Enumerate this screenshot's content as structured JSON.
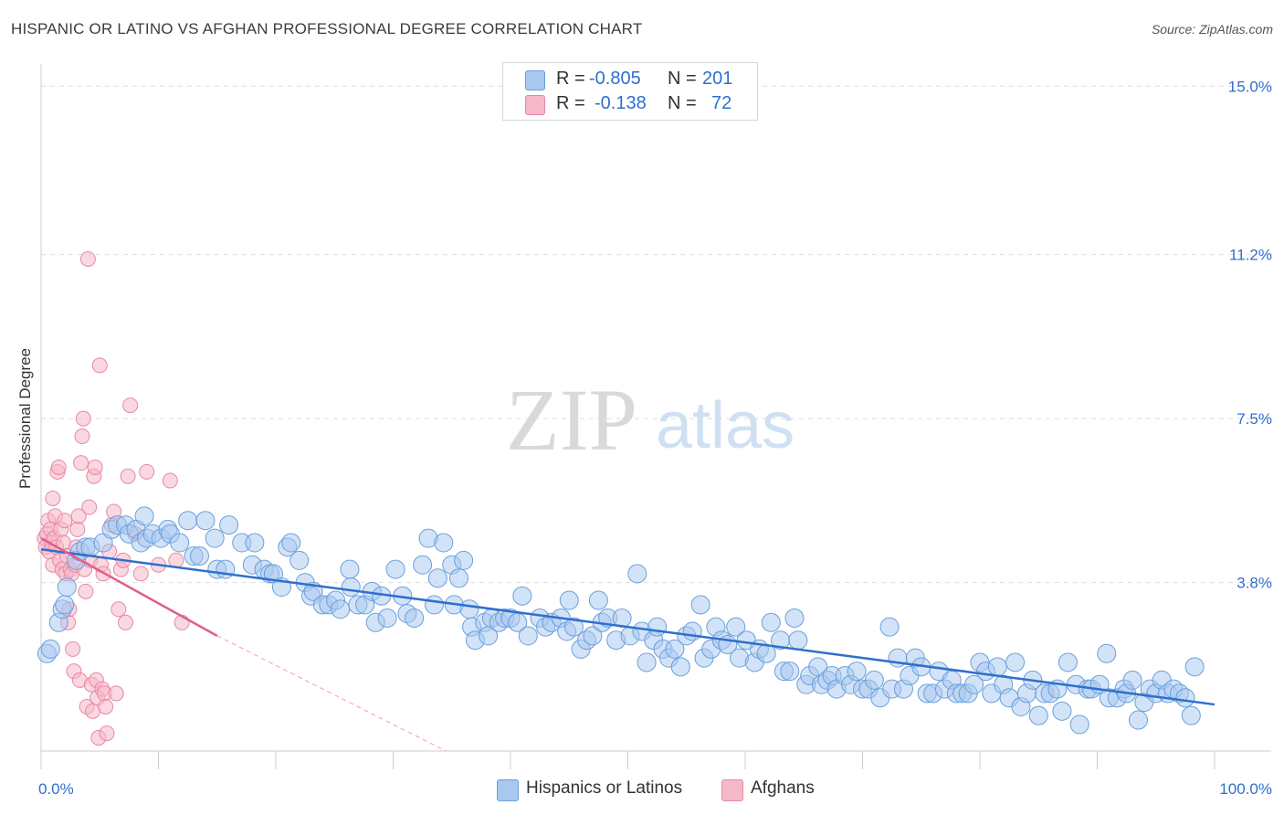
{
  "header": {
    "title": "HISPANIC OR LATINO VS AFGHAN PROFESSIONAL DEGREE CORRELATION CHART",
    "source": "Source: ZipAtlas.com"
  },
  "watermark": {
    "zip": "ZIP",
    "atlas": "atlas"
  },
  "legend_top": {
    "rows": [
      {
        "r_label": "R =",
        "r_value": "-0.805",
        "n_label": "N =",
        "n_value": "201",
        "color": "#a8c8f0"
      },
      {
        "r_label": "R =",
        "r_value": "-0.138",
        "n_label": "N =",
        "n_value": "72",
        "color": "#f5b8c8"
      }
    ]
  },
  "legend_bottom": [
    {
      "label": "Hispanics or Latinos",
      "color": "#a8c8f0"
    },
    {
      "label": "Afghans",
      "color": "#f5b8c8"
    }
  ],
  "colors": {
    "blue_fill": "#a8c8f0",
    "blue_stroke": "#6a9fdc",
    "blue_line": "#2f6fce",
    "pink_fill": "#f5b8c8",
    "pink_stroke": "#e888a4",
    "pink_line": "#e0608a",
    "grid": "#dddddd",
    "axis": "#cccccc",
    "tick_text": "#2f6fce"
  },
  "chart_data": {
    "type": "scatter",
    "title": "HISPANIC OR LATINO VS AFGHAN PROFESSIONAL DEGREE CORRELATION CHART",
    "xlabel": "",
    "ylabel": "Professional Degree",
    "xlim": [
      0,
      100
    ],
    "ylim": [
      0,
      15.5
    ],
    "x_tick_labels": [
      "0.0%",
      "100.0%"
    ],
    "y_ticks": [
      3.8,
      7.5,
      11.2,
      15.0
    ],
    "y_tick_labels": [
      "3.8%",
      "7.5%",
      "11.2%",
      "15.0%"
    ],
    "series": [
      {
        "name": "Hispanics or Latinos",
        "r": -0.805,
        "n": 201,
        "trend": {
          "x0": 0,
          "y0": 4.55,
          "x1": 100,
          "y1": 1.05,
          "dashed_to": null
        },
        "points": [
          [
            0.5,
            2.2
          ],
          [
            0.8,
            2.3
          ],
          [
            1.5,
            2.9
          ],
          [
            1.8,
            3.2
          ],
          [
            2.0,
            3.3
          ],
          [
            2.2,
            3.7
          ],
          [
            3.0,
            4.3
          ],
          [
            3.3,
            4.5
          ],
          [
            3.8,
            4.6
          ],
          [
            4.2,
            4.6
          ],
          [
            5.3,
            4.7
          ],
          [
            6.0,
            5.0
          ],
          [
            6.5,
            5.1
          ],
          [
            7.2,
            5.1
          ],
          [
            7.5,
            4.9
          ],
          [
            8.1,
            5.0
          ],
          [
            8.5,
            4.7
          ],
          [
            8.8,
            5.3
          ],
          [
            9.0,
            4.8
          ],
          [
            9.5,
            4.9
          ],
          [
            10.2,
            4.8
          ],
          [
            10.8,
            5.0
          ],
          [
            11.0,
            4.9
          ],
          [
            11.8,
            4.7
          ],
          [
            12.5,
            5.2
          ],
          [
            13.0,
            4.4
          ],
          [
            13.5,
            4.4
          ],
          [
            14.0,
            5.2
          ],
          [
            14.8,
            4.8
          ],
          [
            15.0,
            4.1
          ],
          [
            15.7,
            4.1
          ],
          [
            16.0,
            5.1
          ],
          [
            17.1,
            4.7
          ],
          [
            18.0,
            4.2
          ],
          [
            18.2,
            4.7
          ],
          [
            19.0,
            4.1
          ],
          [
            19.5,
            4.0
          ],
          [
            19.8,
            4.0
          ],
          [
            20.5,
            3.7
          ],
          [
            21.0,
            4.6
          ],
          [
            21.3,
            4.7
          ],
          [
            22.0,
            4.3
          ],
          [
            22.5,
            3.8
          ],
          [
            23.0,
            3.5
          ],
          [
            23.2,
            3.6
          ],
          [
            24.0,
            3.3
          ],
          [
            24.5,
            3.3
          ],
          [
            25.1,
            3.4
          ],
          [
            25.5,
            3.2
          ],
          [
            26.3,
            4.1
          ],
          [
            26.4,
            3.7
          ],
          [
            27.0,
            3.3
          ],
          [
            27.6,
            3.3
          ],
          [
            28.2,
            3.6
          ],
          [
            28.5,
            2.9
          ],
          [
            29.0,
            3.5
          ],
          [
            29.5,
            3.0
          ],
          [
            30.2,
            4.1
          ],
          [
            30.8,
            3.5
          ],
          [
            31.2,
            3.1
          ],
          [
            31.8,
            3.0
          ],
          [
            32.5,
            4.2
          ],
          [
            33.0,
            4.8
          ],
          [
            33.5,
            3.3
          ],
          [
            33.8,
            3.9
          ],
          [
            34.3,
            4.7
          ],
          [
            35.0,
            4.2
          ],
          [
            35.2,
            3.3
          ],
          [
            35.6,
            3.9
          ],
          [
            36.0,
            4.3
          ],
          [
            36.5,
            3.2
          ],
          [
            36.7,
            2.8
          ],
          [
            37.0,
            2.5
          ],
          [
            37.8,
            2.9
          ],
          [
            38.1,
            2.6
          ],
          [
            38.4,
            3.0
          ],
          [
            39.0,
            2.9
          ],
          [
            39.5,
            3.0
          ],
          [
            40.0,
            3.0
          ],
          [
            40.6,
            2.9
          ],
          [
            41.0,
            3.5
          ],
          [
            41.5,
            2.6
          ],
          [
            42.5,
            3.0
          ],
          [
            43.0,
            2.8
          ],
          [
            43.5,
            2.9
          ],
          [
            44.3,
            3.0
          ],
          [
            44.8,
            2.7
          ],
          [
            45.0,
            3.4
          ],
          [
            45.4,
            2.8
          ],
          [
            46.0,
            2.3
          ],
          [
            46.5,
            2.5
          ],
          [
            47.0,
            2.6
          ],
          [
            47.5,
            3.4
          ],
          [
            47.8,
            2.9
          ],
          [
            48.3,
            3.0
          ],
          [
            49.0,
            2.5
          ],
          [
            49.5,
            3.0
          ],
          [
            50.2,
            2.6
          ],
          [
            50.8,
            4.0
          ],
          [
            51.2,
            2.7
          ],
          [
            51.6,
            2.0
          ],
          [
            52.2,
            2.5
          ],
          [
            52.5,
            2.8
          ],
          [
            53.0,
            2.3
          ],
          [
            53.5,
            2.1
          ],
          [
            54.0,
            2.3
          ],
          [
            54.5,
            1.9
          ],
          [
            55.0,
            2.6
          ],
          [
            55.5,
            2.7
          ],
          [
            56.2,
            3.3
          ],
          [
            56.5,
            2.1
          ],
          [
            57.1,
            2.3
          ],
          [
            57.5,
            2.8
          ],
          [
            58.0,
            2.5
          ],
          [
            58.5,
            2.4
          ],
          [
            59.2,
            2.8
          ],
          [
            59.5,
            2.1
          ],
          [
            60.1,
            2.5
          ],
          [
            60.8,
            2.0
          ],
          [
            61.2,
            2.3
          ],
          [
            61.8,
            2.2
          ],
          [
            62.2,
            2.9
          ],
          [
            63.0,
            2.5
          ],
          [
            63.3,
            1.8
          ],
          [
            63.8,
            1.8
          ],
          [
            64.2,
            3.0
          ],
          [
            64.5,
            2.5
          ],
          [
            65.2,
            1.5
          ],
          [
            65.5,
            1.7
          ],
          [
            66.2,
            1.9
          ],
          [
            66.5,
            1.5
          ],
          [
            67.0,
            1.6
          ],
          [
            67.4,
            1.7
          ],
          [
            67.8,
            1.4
          ],
          [
            68.5,
            1.7
          ],
          [
            69.0,
            1.5
          ],
          [
            69.5,
            1.8
          ],
          [
            70.0,
            1.4
          ],
          [
            70.5,
            1.4
          ],
          [
            71.0,
            1.6
          ],
          [
            71.5,
            1.2
          ],
          [
            72.3,
            2.8
          ],
          [
            72.5,
            1.4
          ],
          [
            73.0,
            2.1
          ],
          [
            73.5,
            1.4
          ],
          [
            74.0,
            1.7
          ],
          [
            74.5,
            2.1
          ],
          [
            75.0,
            1.9
          ],
          [
            75.5,
            1.3
          ],
          [
            76.0,
            1.3
          ],
          [
            76.5,
            1.8
          ],
          [
            77.0,
            1.4
          ],
          [
            77.6,
            1.6
          ],
          [
            78.0,
            1.3
          ],
          [
            78.5,
            1.3
          ],
          [
            79.0,
            1.3
          ],
          [
            79.5,
            1.5
          ],
          [
            80.0,
            2.0
          ],
          [
            80.5,
            1.8
          ],
          [
            81.0,
            1.3
          ],
          [
            81.5,
            1.9
          ],
          [
            82.0,
            1.5
          ],
          [
            82.5,
            1.2
          ],
          [
            83.0,
            2.0
          ],
          [
            83.5,
            1.0
          ],
          [
            84.0,
            1.3
          ],
          [
            84.5,
            1.6
          ],
          [
            85.0,
            0.8
          ],
          [
            85.5,
            1.3
          ],
          [
            86.0,
            1.3
          ],
          [
            86.6,
            1.4
          ],
          [
            87.0,
            0.9
          ],
          [
            87.5,
            2.0
          ],
          [
            88.2,
            1.5
          ],
          [
            88.5,
            0.6
          ],
          [
            89.2,
            1.4
          ],
          [
            89.5,
            1.4
          ],
          [
            90.2,
            1.5
          ],
          [
            90.8,
            2.2
          ],
          [
            91.0,
            1.2
          ],
          [
            91.7,
            1.2
          ],
          [
            92.3,
            1.4
          ],
          [
            92.5,
            1.3
          ],
          [
            93.0,
            1.6
          ],
          [
            93.5,
            0.7
          ],
          [
            94.0,
            1.1
          ],
          [
            94.5,
            1.4
          ],
          [
            95.0,
            1.3
          ],
          [
            95.5,
            1.6
          ],
          [
            96.0,
            1.3
          ],
          [
            96.5,
            1.4
          ],
          [
            97.0,
            1.3
          ],
          [
            97.5,
            1.2
          ],
          [
            98.0,
            0.8
          ],
          [
            98.3,
            1.9
          ]
        ]
      },
      {
        "name": "Afghans",
        "r": -0.138,
        "n": 72,
        "trend": {
          "x0": 0,
          "y0": 4.8,
          "x1": 15,
          "y1": 2.6,
          "dashed_to": [
            34.5,
            0
          ]
        },
        "points": [
          [
            0.3,
            4.8
          ],
          [
            0.4,
            4.6
          ],
          [
            0.5,
            4.9
          ],
          [
            0.6,
            5.2
          ],
          [
            0.7,
            4.5
          ],
          [
            0.8,
            5.0
          ],
          [
            0.9,
            4.7
          ],
          [
            1.0,
            5.7
          ],
          [
            1.0,
            4.2
          ],
          [
            1.1,
            4.8
          ],
          [
            1.2,
            5.3
          ],
          [
            1.3,
            4.6
          ],
          [
            1.4,
            6.3
          ],
          [
            1.5,
            6.4
          ],
          [
            1.6,
            4.3
          ],
          [
            1.7,
            5.0
          ],
          [
            1.8,
            4.1
          ],
          [
            1.9,
            4.7
          ],
          [
            2.0,
            5.2
          ],
          [
            2.1,
            4.0
          ],
          [
            2.2,
            4.4
          ],
          [
            2.3,
            2.9
          ],
          [
            2.4,
            3.2
          ],
          [
            2.5,
            4.1
          ],
          [
            2.6,
            4.0
          ],
          [
            2.7,
            2.3
          ],
          [
            2.8,
            1.8
          ],
          [
            2.9,
            4.2
          ],
          [
            3.0,
            4.6
          ],
          [
            3.1,
            5.0
          ],
          [
            3.2,
            5.3
          ],
          [
            3.3,
            1.6
          ],
          [
            3.4,
            6.5
          ],
          [
            3.5,
            7.1
          ],
          [
            3.6,
            7.5
          ],
          [
            3.7,
            4.1
          ],
          [
            3.8,
            3.6
          ],
          [
            3.9,
            1.0
          ],
          [
            4.0,
            11.1
          ],
          [
            4.1,
            5.5
          ],
          [
            4.2,
            4.3
          ],
          [
            4.3,
            1.5
          ],
          [
            4.4,
            0.9
          ],
          [
            4.5,
            6.2
          ],
          [
            4.6,
            6.4
          ],
          [
            4.7,
            1.6
          ],
          [
            4.8,
            1.2
          ],
          [
            4.9,
            0.3
          ],
          [
            5.0,
            8.7
          ],
          [
            5.1,
            4.2
          ],
          [
            5.2,
            1.4
          ],
          [
            5.3,
            4.0
          ],
          [
            5.4,
            1.3
          ],
          [
            5.5,
            1.0
          ],
          [
            5.6,
            0.4
          ],
          [
            5.8,
            4.5
          ],
          [
            6.0,
            5.1
          ],
          [
            6.2,
            5.4
          ],
          [
            6.4,
            1.3
          ],
          [
            6.6,
            3.2
          ],
          [
            6.8,
            4.1
          ],
          [
            7.0,
            4.3
          ],
          [
            7.2,
            2.9
          ],
          [
            7.4,
            6.2
          ],
          [
            7.6,
            7.8
          ],
          [
            8.0,
            4.9
          ],
          [
            8.5,
            4.0
          ],
          [
            9.0,
            6.3
          ],
          [
            10.0,
            4.2
          ],
          [
            11.0,
            6.1
          ],
          [
            11.5,
            4.3
          ],
          [
            12.0,
            2.9
          ]
        ]
      }
    ]
  }
}
